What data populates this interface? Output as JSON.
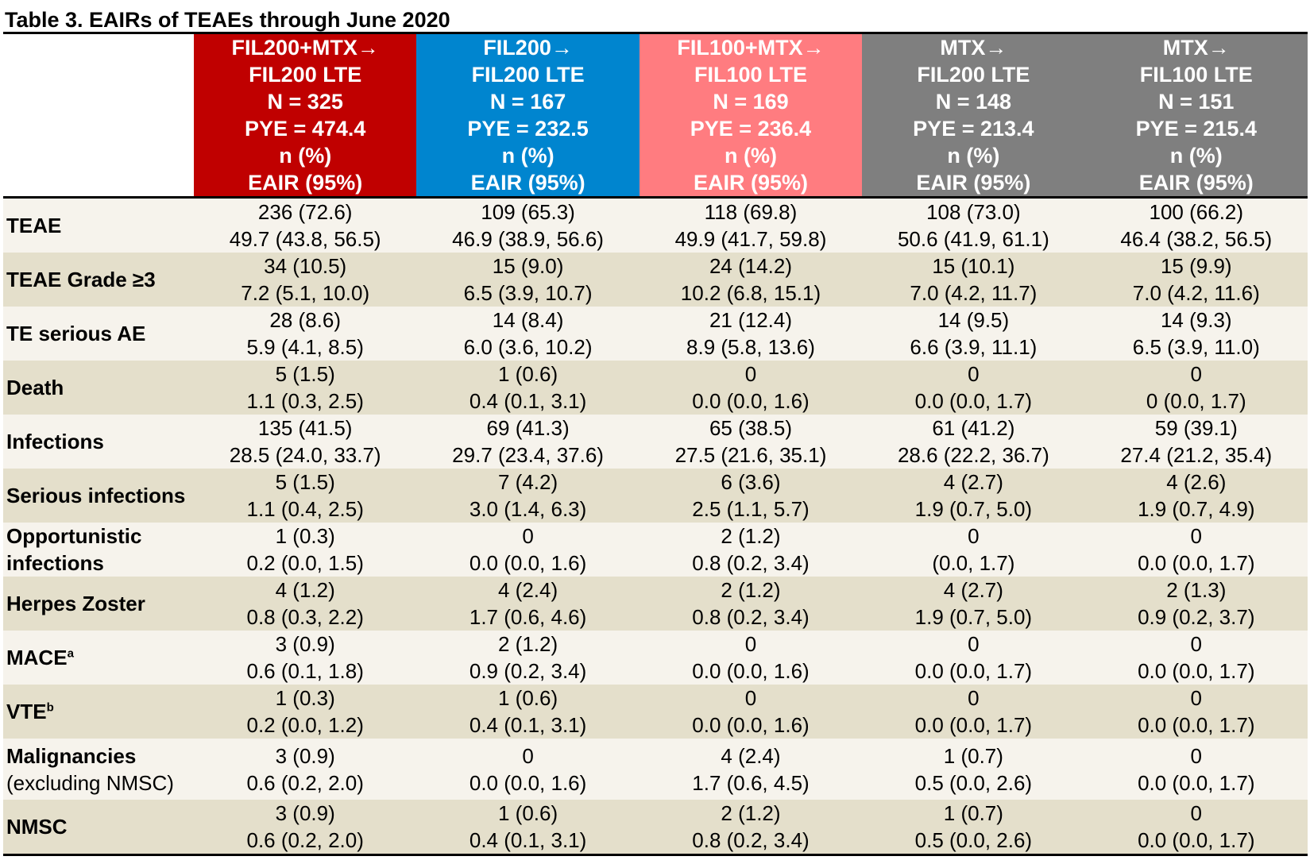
{
  "title": "Table 3. EAIRs of TEAEs through June 2020",
  "colors": {
    "col1": "#c00000",
    "col2": "#0085cf",
    "col3": "#ff7c80",
    "col4": "#7f7f7f",
    "col5": "#7f7f7f"
  },
  "columns": [
    {
      "line1": "FIL200+MTX→",
      "line2": "FIL200 LTE",
      "n": "N = 325",
      "pye": "PYE = 474.4",
      "npct": "n (%)",
      "eair": "EAIR (95%)"
    },
    {
      "line1": "FIL200→",
      "line2": "FIL200 LTE",
      "n": "N = 167",
      "pye": "PYE = 232.5",
      "npct": "n (%)",
      "eair": "EAIR (95%)"
    },
    {
      "line1": "FIL100+MTX→",
      "line2": "FIL100 LTE",
      "n": "N = 169",
      "pye": "PYE = 236.4",
      "npct": "n (%)",
      "eair": "EAIR (95%)"
    },
    {
      "line1": "MTX→",
      "line2": "FIL200 LTE",
      "n": "N = 148",
      "pye": "PYE = 213.4",
      "npct": "n (%)",
      "eair": "EAIR (95%)"
    },
    {
      "line1": "MTX→",
      "line2": "FIL100 LTE",
      "n": "N = 151",
      "pye": "PYE = 215.4",
      "npct": "n (%)",
      "eair": "EAIR (95%)"
    }
  ],
  "rows": [
    {
      "label": "TEAE",
      "label_sup": "",
      "label_sub": "",
      "cells": [
        [
          "236 (72.6)",
          "49.7 (43.8, 56.5)"
        ],
        [
          "109 (65.3)",
          "46.9 (38.9, 56.6)"
        ],
        [
          "118 (69.8)",
          "49.9 (41.7, 59.8)"
        ],
        [
          "108 (73.0)",
          "50.6 (41.9, 61.1)"
        ],
        [
          "100 (66.2)",
          "46.4 (38.2, 56.5)"
        ]
      ]
    },
    {
      "label": "TEAE Grade ≥3",
      "label_sup": "",
      "label_sub": "",
      "cells": [
        [
          "34 (10.5)",
          "7.2 (5.1, 10.0)"
        ],
        [
          "15 (9.0)",
          "6.5 (3.9, 10.7)"
        ],
        [
          "24 (14.2)",
          "10.2 (6.8, 15.1)"
        ],
        [
          "15 (10.1)",
          "7.0 (4.2, 11.7)"
        ],
        [
          "15 (9.9)",
          "7.0 (4.2, 11.6)"
        ]
      ]
    },
    {
      "label": "TE serious AE",
      "label_sup": "",
      "label_sub": "",
      "cells": [
        [
          "28 (8.6)",
          "5.9 (4.1, 8.5)"
        ],
        [
          "14 (8.4)",
          "6.0 (3.6, 10.2)"
        ],
        [
          "21 (12.4)",
          "8.9 (5.8, 13.6)"
        ],
        [
          "14 (9.5)",
          "6.6 (3.9, 11.1)"
        ],
        [
          "14 (9.3)",
          "6.5 (3.9, 11.0)"
        ]
      ]
    },
    {
      "label": "Death",
      "label_sup": "",
      "label_sub": "",
      "cells": [
        [
          "5 (1.5)",
          "1.1 (0.3, 2.5)"
        ],
        [
          "1 (0.6)",
          "0.4 (0.1, 3.1)"
        ],
        [
          "0",
          "0.0 (0.0, 1.6)"
        ],
        [
          "0",
          "0.0 (0.0, 1.7)"
        ],
        [
          "0",
          "0 (0.0, 1.7)"
        ]
      ]
    },
    {
      "label": "Infections",
      "label_sup": "",
      "label_sub": "",
      "cells": [
        [
          "135 (41.5)",
          "28.5 (24.0, 33.7)"
        ],
        [
          "69 (41.3)",
          "29.7 (23.4, 37.6)"
        ],
        [
          "65 (38.5)",
          "27.5 (21.6, 35.1)"
        ],
        [
          "61 (41.2)",
          "28.6 (22.2, 36.7)"
        ],
        [
          "59 (39.1)",
          "27.4 (21.2, 35.4)"
        ]
      ]
    },
    {
      "label": "Serious infections",
      "label_sup": "",
      "label_sub": "",
      "cells": [
        [
          "5 (1.5)",
          "1.1 (0.4, 2.5)"
        ],
        [
          "7 (4.2)",
          "3.0 (1.4, 6.3)"
        ],
        [
          "6 (3.6)",
          "2.5 (1.1, 5.7)"
        ],
        [
          "4 (2.7)",
          "1.9 (0.7, 5.0)"
        ],
        [
          "4 (2.6)",
          "1.9 (0.7, 4.9)"
        ]
      ]
    },
    {
      "label": "Opportunistic infections",
      "label_sup": "",
      "label_sub": "",
      "cells": [
        [
          "1 (0.3)",
          "0.2 (0.0, 1.5)"
        ],
        [
          "0",
          "0.0 (0.0, 1.6)"
        ],
        [
          "2 (1.2)",
          "0.8 (0.2, 3.4)"
        ],
        [
          "0",
          "(0.0, 1.7)"
        ],
        [
          "0",
          "0.0 (0.0, 1.7)"
        ]
      ]
    },
    {
      "label": "Herpes Zoster",
      "label_sup": "",
      "label_sub": "",
      "cells": [
        [
          "4 (1.2)",
          "0.8 (0.3, 2.2)"
        ],
        [
          "4 (2.4)",
          "1.7 (0.6, 4.6)"
        ],
        [
          "2 (1.2)",
          "0.8 (0.2, 3.4)"
        ],
        [
          "4 (2.7)",
          "1.9 (0.7, 5.0)"
        ],
        [
          "2 (1.3)",
          "0.9 (0.2, 3.7)"
        ]
      ]
    },
    {
      "label": "MACE",
      "label_sup": "a",
      "label_sub": "",
      "cells": [
        [
          "3 (0.9)",
          "0.6 (0.1, 1.8)"
        ],
        [
          "2 (1.2)",
          "0.9 (0.2, 3.4)"
        ],
        [
          "0",
          "0.0 (0.0, 1.6)"
        ],
        [
          "0",
          "0.0 (0.0, 1.7)"
        ],
        [
          "0",
          "0.0 (0.0, 1.7)"
        ]
      ]
    },
    {
      "label": "VTE",
      "label_sup": "b",
      "label_sub": "",
      "cells": [
        [
          "1 (0.3)",
          "0.2 (0.0, 1.2)"
        ],
        [
          "1 (0.6)",
          "0.4 (0.1, 3.1)"
        ],
        [
          "0",
          "0.0 (0.0, 1.6)"
        ],
        [
          "0",
          "0.0 (0.0, 1.7)"
        ],
        [
          "0",
          "0.0 (0.0, 1.7)"
        ]
      ]
    },
    {
      "label": "Malignancies",
      "label_sup": "",
      "label_sub": "(excluding NMSC)",
      "cells": [
        [
          "3 (0.9)",
          "0.6 (0.2, 2.0)"
        ],
        [
          "0",
          "0.0 (0.0, 1.6)"
        ],
        [
          "4 (2.4)",
          "1.7 (0.6, 4.5)"
        ],
        [
          "1 (0.7)",
          "0.5 (0.0, 2.6)"
        ],
        [
          "0",
          "0.0 (0.0, 1.7)"
        ]
      ]
    },
    {
      "label": "NMSC",
      "label_sup": "",
      "label_sub": "",
      "cells": [
        [
          "3 (0.9)",
          "0.6 (0.2, 2.0)"
        ],
        [
          "1 (0.6)",
          "0.4 (0.1, 3.1)"
        ],
        [
          "2 (1.2)",
          "0.8 (0.2, 3.4)"
        ],
        [
          "1 (0.7)",
          "0.5 (0.0, 2.6)"
        ],
        [
          "0",
          "0.0 (0.0, 1.7)"
        ]
      ]
    }
  ]
}
